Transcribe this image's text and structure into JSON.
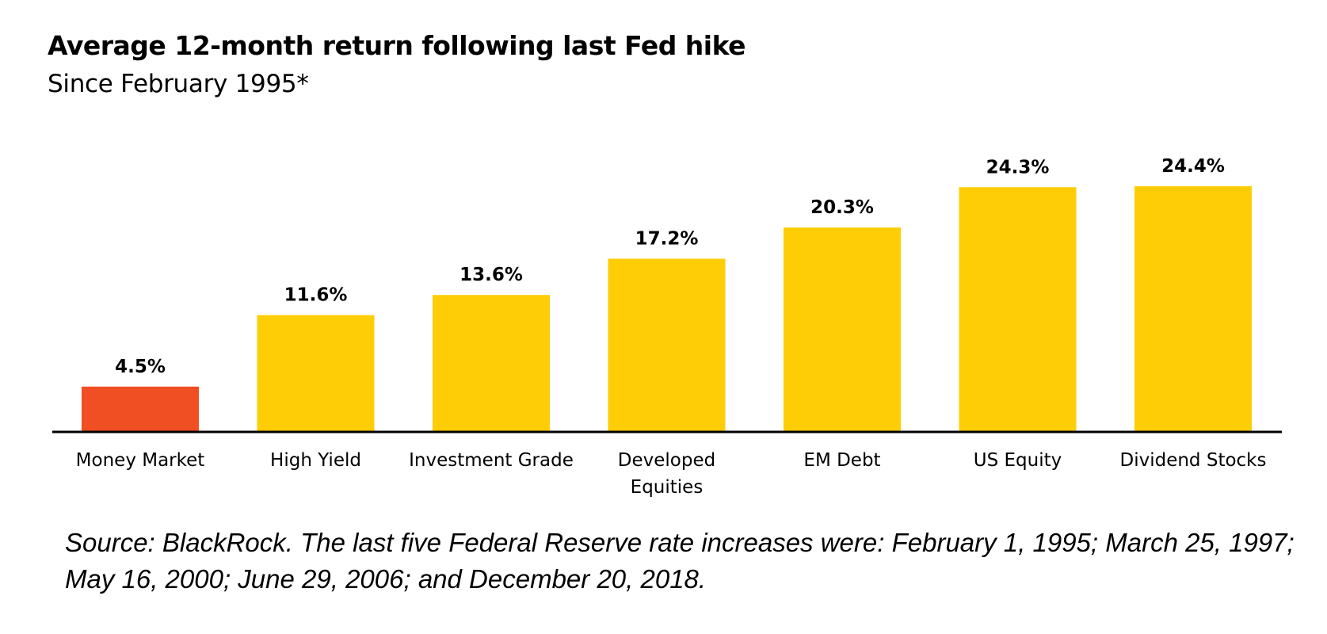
{
  "chart_data": {
    "type": "bar",
    "title": "Average 12-month return following last Fed hike",
    "subtitle": "Since February 1995*",
    "categories": [
      [
        "Money Market"
      ],
      [
        "High Yield"
      ],
      [
        "Investment Grade"
      ],
      [
        "Developed",
        "Equities"
      ],
      [
        "EM Debt"
      ],
      [
        "US Equity"
      ],
      [
        "Dividend Stocks"
      ]
    ],
    "values": [
      4.5,
      11.6,
      13.6,
      17.2,
      20.3,
      24.3,
      24.4
    ],
    "value_labels": [
      "4.5%",
      "11.6%",
      "13.6%",
      "17.2%",
      "20.3%",
      "24.3%",
      "24.4%"
    ],
    "bar_colors": [
      "#f04e23",
      "#ffcd05",
      "#ffcd05",
      "#ffcd05",
      "#ffcd05",
      "#ffcd05",
      "#ffcd05"
    ],
    "xlabel": "",
    "ylabel": "",
    "ylim": [
      0,
      24.4
    ],
    "grid": false,
    "legend": "none"
  },
  "source_note": "Source: BlackRock. The last five Federal Reserve rate increases were: February 1, 1995; March 25, 1997; May 16, 2000; June 29, 2006; and December 20, 2018."
}
